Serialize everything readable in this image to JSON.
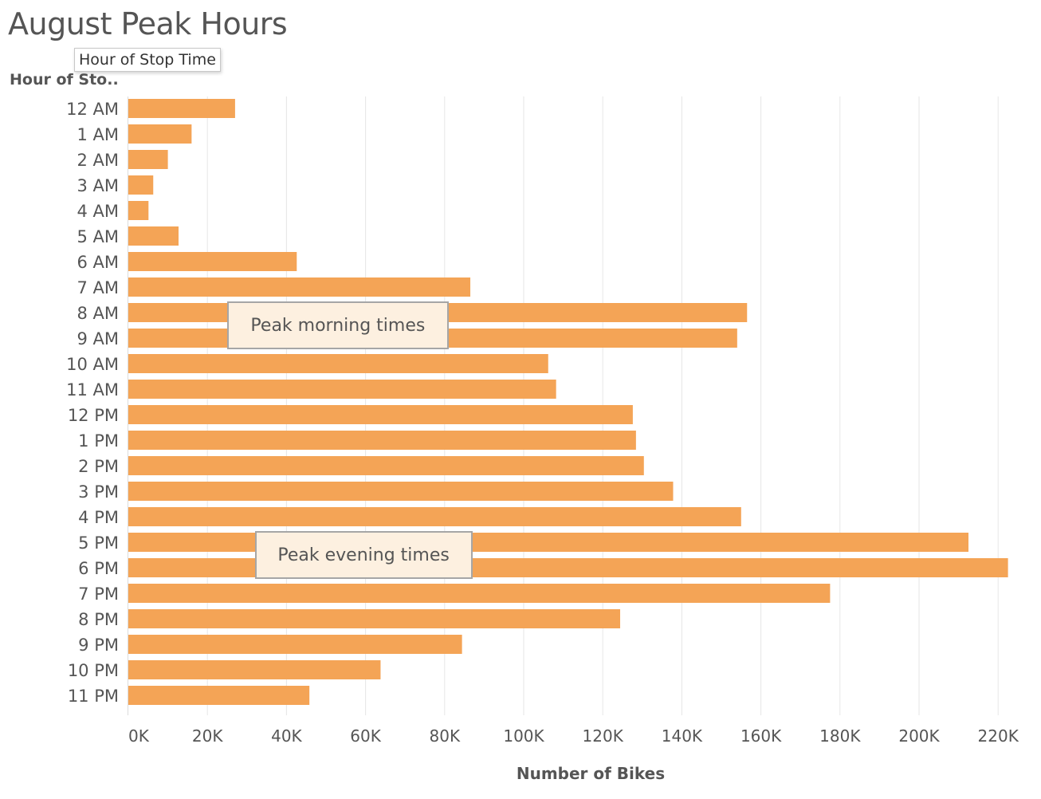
{
  "colors": {
    "bar": "#f4a456",
    "grid": "#e6e6e6",
    "text": "#555555",
    "annotation_bg": "#fdf0e0",
    "annotation_border": "#a6a6a6"
  },
  "tooltip": {
    "text": "Hour of Stop Time"
  },
  "chart_data": {
    "type": "bar",
    "orientation": "horizontal",
    "title": "August Peak Hours",
    "ylabel": "Hour of Sto..",
    "xlabel": "Number of Bikes",
    "xlim": [
      0,
      230000
    ],
    "x_ticks": [
      0,
      20000,
      40000,
      60000,
      80000,
      100000,
      120000,
      140000,
      160000,
      180000,
      200000,
      220000
    ],
    "x_tick_labels": [
      "0K",
      "20K",
      "40K",
      "60K",
      "80K",
      "100K",
      "120K",
      "140K",
      "160K",
      "180K",
      "200K",
      "220K"
    ],
    "grid": true,
    "categories": [
      "12 AM",
      "1 AM",
      "2 AM",
      "3 AM",
      "4 AM",
      "5 AM",
      "6 AM",
      "7 AM",
      "8 AM",
      "9 AM",
      "10 AM",
      "11 AM",
      "12 PM",
      "1 PM",
      "2 PM",
      "3 PM",
      "4 PM",
      "5 PM",
      "6 PM",
      "7 PM",
      "8 PM",
      "9 PM",
      "10 PM",
      "11 PM"
    ],
    "values": [
      27000,
      16000,
      10000,
      6300,
      5100,
      12700,
      42600,
      86500,
      156500,
      154000,
      106200,
      108200,
      127600,
      128400,
      130400,
      137800,
      155000,
      212500,
      222500,
      177500,
      124400,
      84400,
      63800,
      45800
    ],
    "annotations": [
      {
        "text": "Peak morning times",
        "categories": [
          "8 AM",
          "9 AM"
        ],
        "x_start": 25000,
        "x_end": 81000
      },
      {
        "text": "Peak evening times",
        "categories": [
          "5 PM",
          "6 PM"
        ],
        "x_start": 32000,
        "x_end": 87000
      }
    ]
  }
}
